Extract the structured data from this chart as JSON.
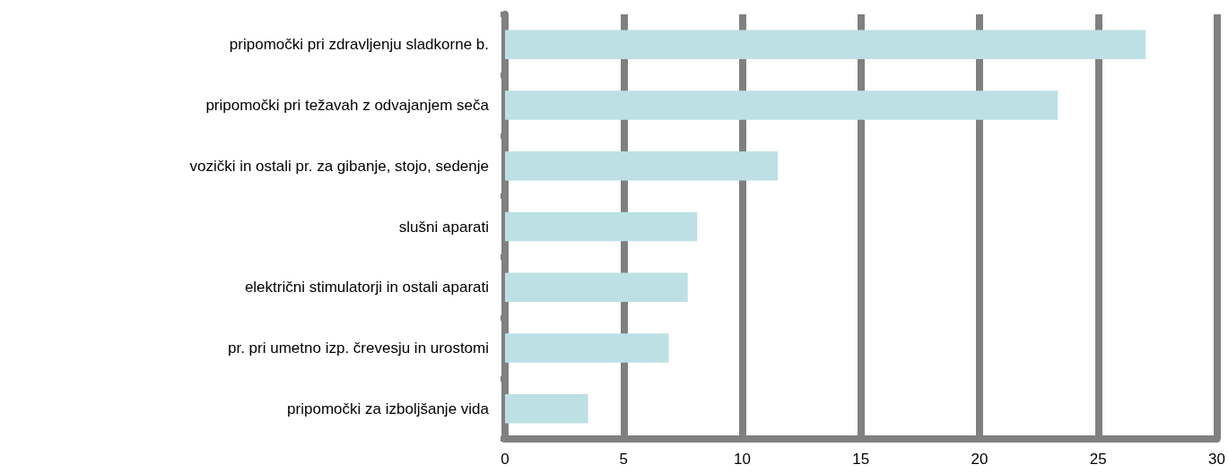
{
  "chart_data": {
    "type": "bar",
    "orientation": "horizontal",
    "categories": [
      "pripomočki pri zdravljenju sladkorne b.",
      "pripomočki pri težavah z odvajanjem seča",
      "vozički in ostali pr. za gibanje, stojo, sedenje",
      "slušni aparati",
      "električni stimulatorji in ostali aparati",
      "pr. pri umetno izp. črevesju in urostomi",
      "pripomočki za izboljšanje vida"
    ],
    "values": [
      27.0,
      23.3,
      11.5,
      8.1,
      7.7,
      6.9,
      3.5
    ],
    "color": "#bce0e3",
    "xlim": [
      0,
      30
    ],
    "xticks": [
      0,
      5,
      10,
      15,
      20,
      25,
      30
    ],
    "grid": "x"
  }
}
